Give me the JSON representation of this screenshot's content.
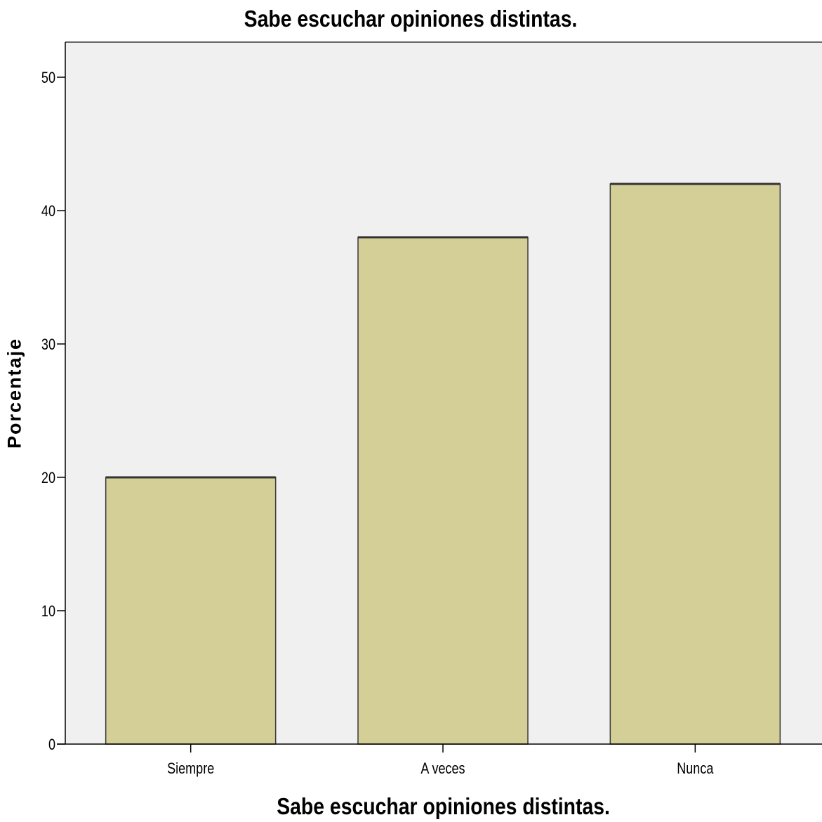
{
  "chart_data": {
    "type": "bar",
    "title": "Sabe escuchar opiniones distintas.",
    "xlabel": "Sabe escuchar opiniones distintas.",
    "ylabel": "Porcentaje",
    "categories": [
      "Siempre",
      "A veces",
      "Nunca"
    ],
    "values": [
      20,
      38,
      42
    ],
    "ylim": [
      0,
      52.5
    ],
    "yticks": [
      0,
      10,
      20,
      30,
      40,
      50
    ],
    "grid": false,
    "legend": "none",
    "colors": {
      "bar_fill": "#d4ce97",
      "bar_stroke": "#3a3a3a",
      "plot_background": "#f0f0f0",
      "axis": "#000000"
    }
  }
}
